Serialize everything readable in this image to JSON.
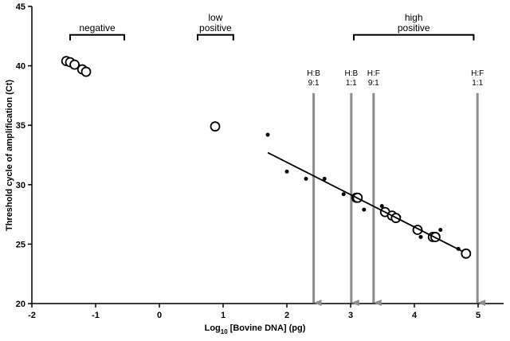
{
  "chart_data": {
    "type": "scatter",
    "ylabel": "Threshold cycle of amplification (Ct)",
    "xlabel": "Log",
    "xlabel_sub": "10",
    "xlabel_rest": "[Bovine DNA] (pg)",
    "xlim": [
      -2,
      5.4
    ],
    "ylim": [
      20,
      45
    ],
    "xticks": [
      -2,
      -1,
      0,
      1,
      2,
      3,
      4,
      5
    ],
    "yticks": [
      20,
      25,
      30,
      35,
      40,
      45
    ],
    "series": [
      {
        "type": "scatter",
        "marker": "filled",
        "color": "#000000",
        "x": [
          1.7,
          2.0,
          2.3,
          2.59,
          2.89,
          3.21,
          3.49,
          3.76,
          4.1,
          4.41,
          4.69
        ],
        "values": [
          34.2,
          31.1,
          30.5,
          30.5,
          29.2,
          27.9,
          28.2,
          27.3,
          25.6,
          26.2,
          24.6
        ]
      },
      {
        "type": "scatter",
        "marker": "open",
        "color": "#000000",
        "x": [
          -1.46,
          -1.4,
          -1.33,
          -1.21,
          -1.15,
          0.875,
          3.09,
          3.11,
          3.54,
          3.65,
          3.71,
          4.05,
          4.29,
          4.33,
          4.81
        ],
        "values": [
          40.4,
          40.3,
          40.1,
          39.7,
          39.5,
          34.9,
          28.9,
          28.9,
          27.7,
          27.4,
          27.2,
          26.2,
          25.6,
          25.6,
          24.2
        ]
      },
      {
        "type": "line",
        "color": "#000000",
        "x": [
          1.7,
          4.75
        ],
        "values": [
          32.7,
          24.4
        ]
      }
    ],
    "brackets": [
      {
        "label": [
          "negative"
        ],
        "x": [
          -1.4,
          -0.55
        ],
        "y": 42.6
      },
      {
        "label": [
          "low",
          "positive"
        ],
        "x": [
          0.6,
          1.16
        ],
        "y": 42.6
      },
      {
        "label": [
          "high",
          "positive"
        ],
        "x": [
          3.05,
          4.93
        ],
        "y": 42.6
      }
    ],
    "arrows": [
      {
        "label": [
          "H:B",
          "9:1"
        ],
        "x": 2.42,
        "y": 37.7
      },
      {
        "label": [
          "H:B",
          "1:1"
        ],
        "x": 3.01,
        "y": 37.7
      },
      {
        "label": [
          "H:F",
          "9:1"
        ],
        "x": 3.36,
        "y": 37.7
      },
      {
        "label": [
          "H:F",
          "1:1"
        ],
        "x": 4.99,
        "y": 37.7
      }
    ],
    "arrow_color": "#8c8c8c"
  }
}
